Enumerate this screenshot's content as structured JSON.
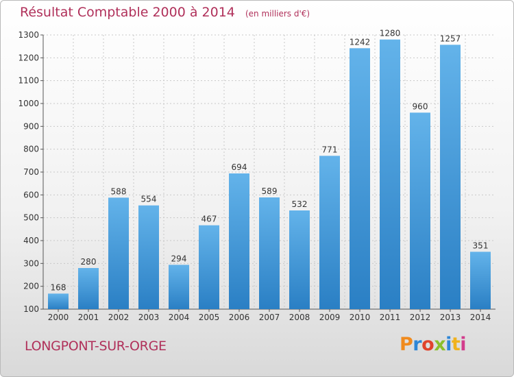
{
  "header": {
    "title": "Résultat Comptable 2000 à 2014",
    "subtitle": "(en milliers d'€)"
  },
  "footer": {
    "commune": "LONGPONT-SUR-ORGE",
    "brand": "Proxiti",
    "brand_colors": [
      "#f08a1d",
      "#2e86d6",
      "#e0432c",
      "#8bbf2a",
      "#2e86d6",
      "#f0b21d",
      "#d23c8c"
    ]
  },
  "colors": {
    "bar_top": "#63b3ea",
    "bar_bottom": "#2a7fc4",
    "title": "#b0305a",
    "grid": "#c8c8c8",
    "axis": "#555555"
  },
  "chart_data": {
    "type": "bar",
    "categories": [
      "2000",
      "2001",
      "2002",
      "2003",
      "2004",
      "2005",
      "2006",
      "2007",
      "2008",
      "2009",
      "2010",
      "2011",
      "2012",
      "2013",
      "2014"
    ],
    "values": [
      168,
      280,
      588,
      554,
      294,
      467,
      694,
      589,
      532,
      771,
      1242,
      1280,
      960,
      1257,
      351
    ],
    "yticks": [
      100,
      200,
      300,
      400,
      500,
      600,
      700,
      800,
      900,
      1000,
      1100,
      1200,
      1300
    ],
    "ylim": [
      100,
      1300
    ],
    "grid": true,
    "title": "Résultat Comptable 2000 à 2014",
    "xlabel": "",
    "ylabel": ""
  }
}
